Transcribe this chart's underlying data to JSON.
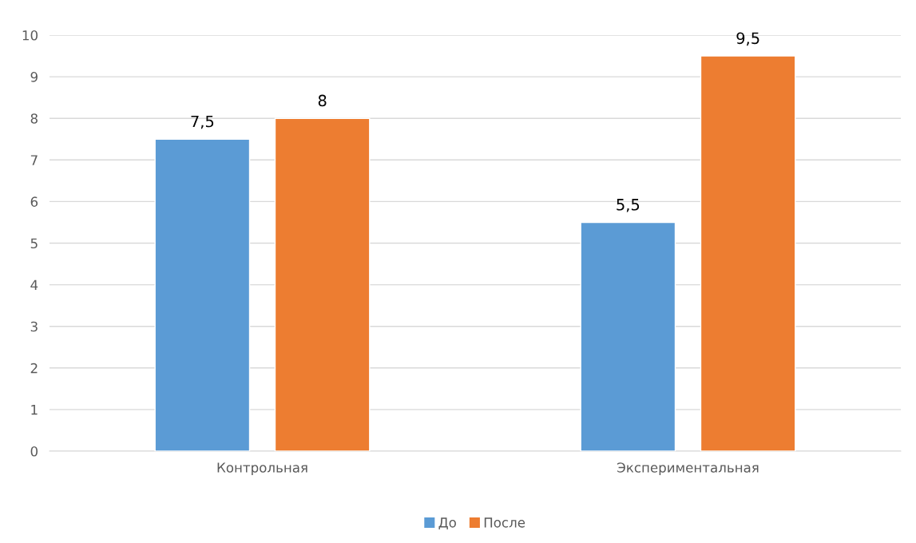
{
  "chart_data": {
    "type": "bar",
    "categories": [
      "Контрольная",
      "Экспериментальная"
    ],
    "series": [
      {
        "name": "До",
        "color": "#5b9bd5",
        "values": [
          7.5,
          5.5
        ],
        "value_labels": [
          "7,5",
          "5,5"
        ]
      },
      {
        "name": "После",
        "color": "#ed7d31",
        "values": [
          8,
          9.5
        ],
        "value_labels": [
          "8",
          "9,5"
        ]
      }
    ],
    "ylim": [
      0,
      10
    ],
    "yticks": [
      0,
      1,
      2,
      3,
      4,
      5,
      6,
      7,
      8,
      9,
      10
    ],
    "grid": "y",
    "legend": "bottom"
  }
}
